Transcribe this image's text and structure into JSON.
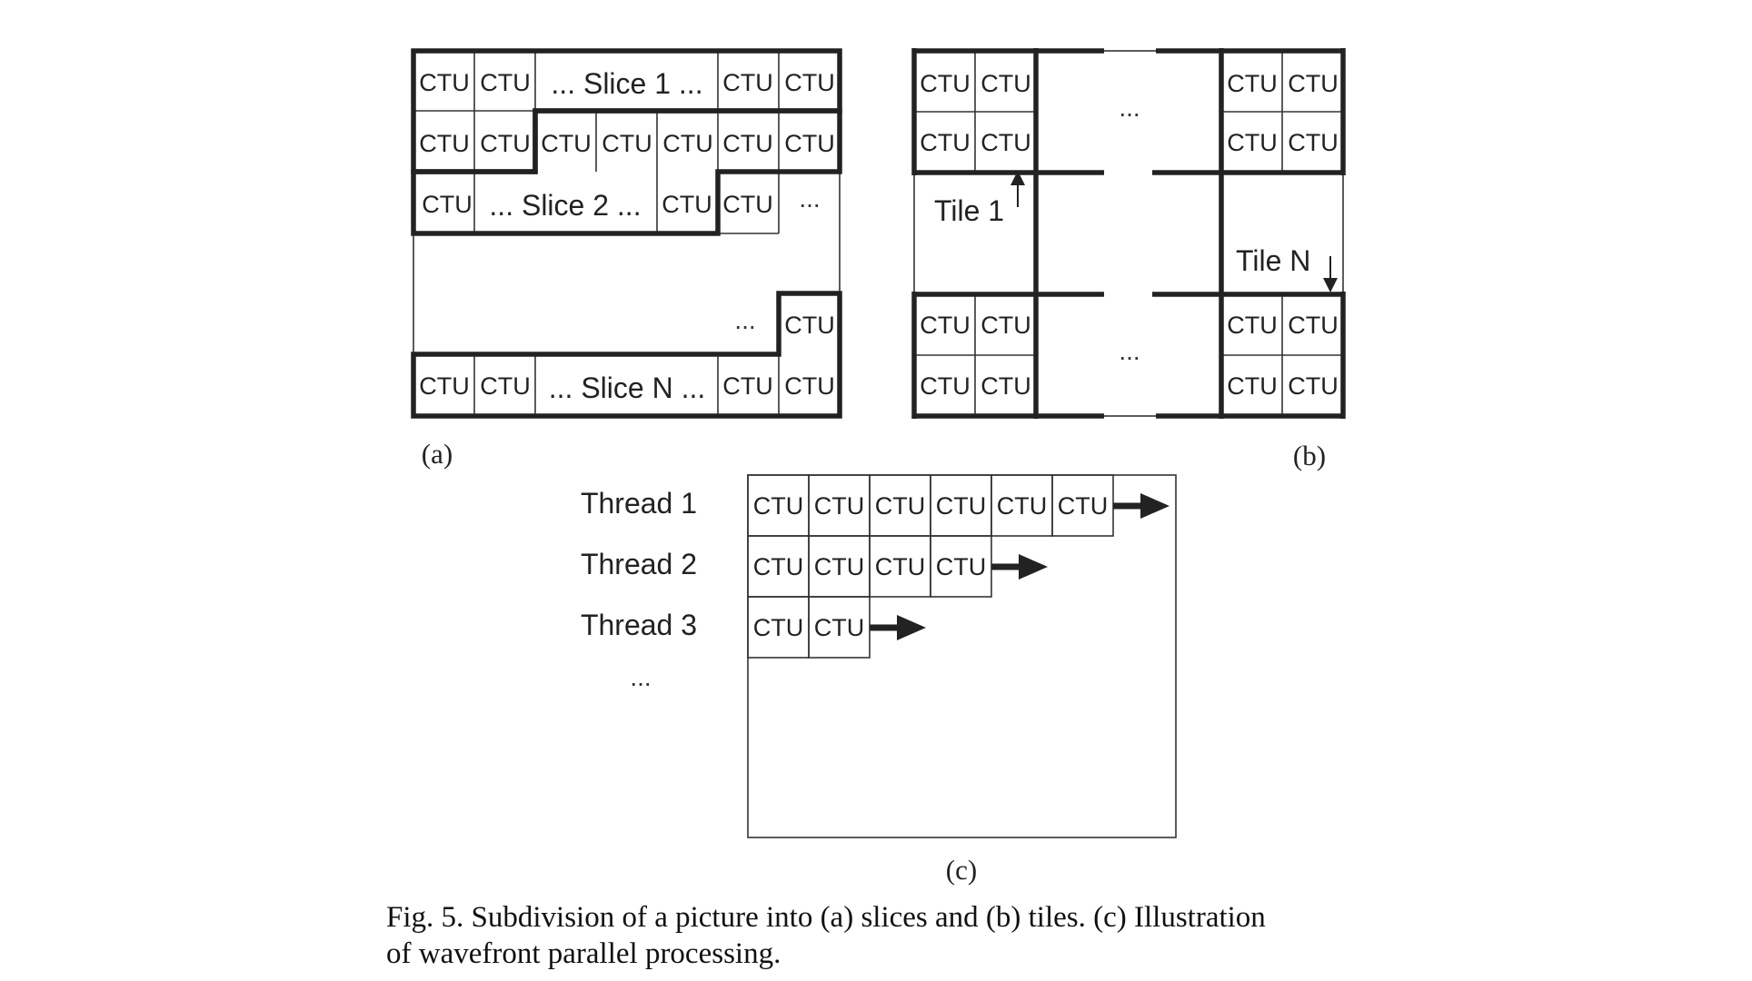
{
  "ctu": "CTU",
  "ellipsis": "...",
  "vellipsis": "⋮",
  "panel_a": {
    "label": "(a)",
    "slice1": "... Slice 1 ...",
    "slice2": "... Slice 2 ...",
    "sliceN": "... Slice N ..."
  },
  "panel_b": {
    "label": "(b)",
    "tile1": "Tile 1",
    "tileN": "Tile N"
  },
  "panel_c": {
    "label": "(c)",
    "threads": [
      {
        "label": "Thread 1",
        "ctu_count": 6
      },
      {
        "label": "Thread 2",
        "ctu_count": 4
      },
      {
        "label": "Thread 3",
        "ctu_count": 2
      }
    ],
    "more": "..."
  },
  "caption": {
    "line1": "Fig. 5.   Subdivision of a picture into (a) slices and (b) tiles. (c) Illustration",
    "line2": "of wavefront parallel processing."
  }
}
